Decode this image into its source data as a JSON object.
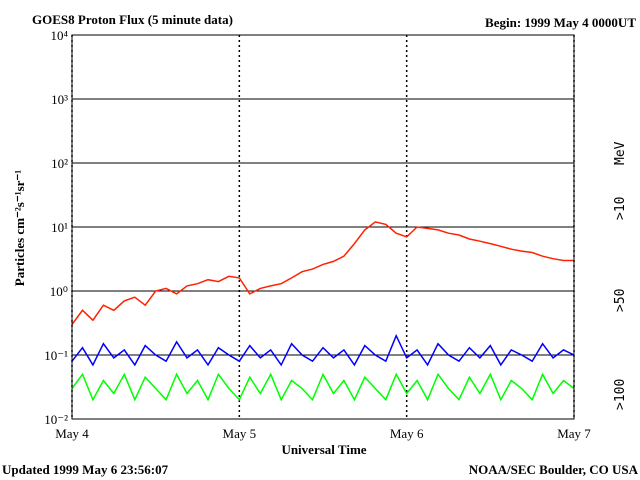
{
  "chart_data": {
    "type": "line",
    "title": "GOES8 Proton Flux (5 minute data)",
    "subtitle": "Begin: 1999 May 4 0000UT",
    "ylabel": "Particles cm⁻²s⁻¹sr⁻¹",
    "xlabel": "Universal Time",
    "unit_label": "MeV",
    "footer_left": "Updated 1999 May  6 23:56:07",
    "footer_right": "NOAA/SEC Boulder, CO USA",
    "log_y": true,
    "grid": true,
    "xlim": [
      0,
      72
    ],
    "xticks": [
      {
        "value": 0,
        "label": "May 4"
      },
      {
        "value": 24,
        "label": "May 5"
      },
      {
        "value": 48,
        "label": "May 6"
      },
      {
        "value": 72,
        "label": "May 7"
      }
    ],
    "ylim": [
      0.01,
      10000
    ],
    "yticks": [
      {
        "value": 0.01,
        "label": "10⁻²"
      },
      {
        "value": 0.1,
        "label": "10⁻¹"
      },
      {
        "value": 1,
        "label": "10⁰"
      },
      {
        "value": 10,
        "label": "10¹"
      },
      {
        "value": 100,
        "label": "10²"
      },
      {
        "value": 1000,
        "label": "10³"
      },
      {
        "value": 10000,
        "label": "10⁴"
      }
    ],
    "x": [
      0,
      1.5,
      3,
      4.5,
      6,
      7.5,
      9,
      10.5,
      12,
      13.5,
      15,
      16.5,
      18,
      19.5,
      21,
      22.5,
      24,
      25.5,
      27,
      28.5,
      30,
      31.5,
      33,
      34.5,
      36,
      37.5,
      39,
      40.5,
      42,
      43.5,
      45,
      46.5,
      48,
      49.5,
      51,
      52.5,
      54,
      55.5,
      57,
      58.5,
      60,
      61.5,
      63,
      64.5,
      66,
      67.5,
      69,
      70.5,
      72
    ],
    "series": [
      {
        "name": ">10",
        "color": "#ff2200",
        "values": [
          0.3,
          0.5,
          0.35,
          0.6,
          0.5,
          0.7,
          0.8,
          0.6,
          1.0,
          1.1,
          0.9,
          1.2,
          1.3,
          1.5,
          1.4,
          1.7,
          1.6,
          0.9,
          1.1,
          1.2,
          1.3,
          1.6,
          2.0,
          2.2,
          2.6,
          2.9,
          3.5,
          5.5,
          9,
          12,
          11,
          8,
          7,
          10,
          9.5,
          9,
          8,
          7.5,
          6.5,
          6,
          5.5,
          5,
          4.5,
          4.2,
          4,
          3.5,
          3.2,
          3,
          3
        ]
      },
      {
        "name": ">50",
        "color": "#0000ff",
        "values": [
          0.08,
          0.13,
          0.07,
          0.15,
          0.09,
          0.12,
          0.07,
          0.14,
          0.1,
          0.08,
          0.16,
          0.09,
          0.12,
          0.07,
          0.13,
          0.1,
          0.08,
          0.14,
          0.09,
          0.12,
          0.07,
          0.15,
          0.1,
          0.08,
          0.13,
          0.09,
          0.12,
          0.07,
          0.14,
          0.1,
          0.08,
          0.2,
          0.09,
          0.12,
          0.07,
          0.15,
          0.1,
          0.08,
          0.13,
          0.09,
          0.14,
          0.07,
          0.12,
          0.1,
          0.08,
          0.15,
          0.09,
          0.12,
          0.1
        ]
      },
      {
        "name": ">100",
        "color": "#00ff00",
        "values": [
          0.03,
          0.05,
          0.02,
          0.04,
          0.025,
          0.05,
          0.02,
          0.045,
          0.03,
          0.02,
          0.05,
          0.025,
          0.04,
          0.02,
          0.05,
          0.03,
          0.02,
          0.045,
          0.025,
          0.05,
          0.02,
          0.04,
          0.03,
          0.02,
          0.05,
          0.025,
          0.04,
          0.02,
          0.045,
          0.03,
          0.02,
          0.05,
          0.025,
          0.04,
          0.02,
          0.05,
          0.03,
          0.02,
          0.045,
          0.025,
          0.05,
          0.02,
          0.04,
          0.03,
          0.02,
          0.05,
          0.025,
          0.04,
          0.03
        ]
      }
    ]
  }
}
